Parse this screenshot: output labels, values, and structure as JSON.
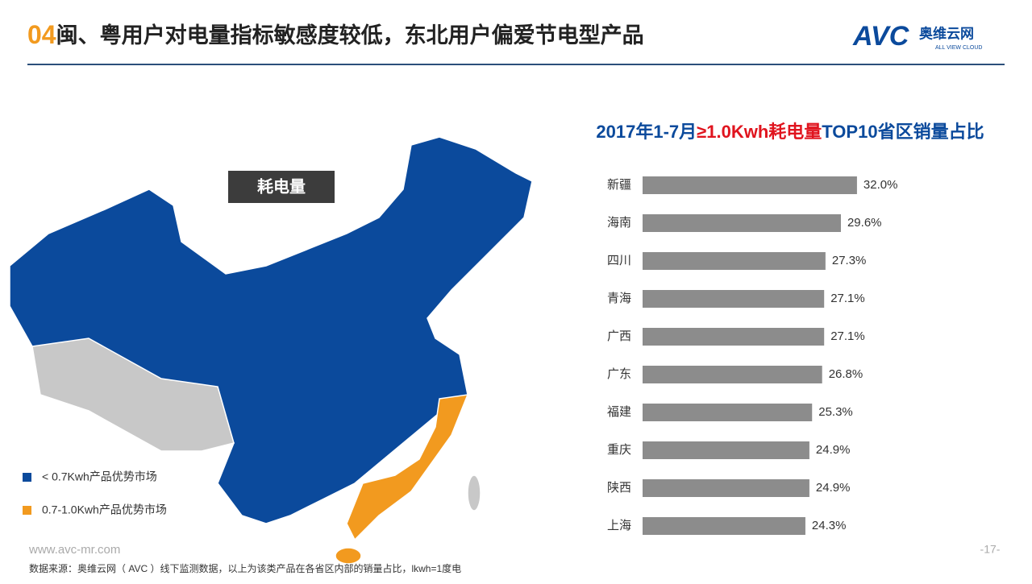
{
  "header": {
    "number": "04",
    "title": "闽、粤用户对电量指标敏感度较低，东北用户偏爱节电型产品",
    "logo": "AVC",
    "logo_cn": "奥维云网",
    "logo_en": "ALL VIEW CLOUD"
  },
  "map": {
    "label": "耗电量",
    "legend": [
      "< 0.7Kwh产品优势市场",
      "0.7-1.0Kwh产品优势市场"
    ],
    "colors": [
      "#0b4a9c",
      "#f29a1f"
    ]
  },
  "chart_data": {
    "type": "bar",
    "orientation": "horizontal",
    "title": [
      "2017年1-7月",
      "≥1.0Kwh耗电量",
      "TOP10省区销量占比"
    ],
    "categories": [
      "新疆",
      "海南",
      "四川",
      "青海",
      "广西",
      "广东",
      "福建",
      "重庆",
      "陕西",
      "上海"
    ],
    "values": [
      32.0,
      29.6,
      27.3,
      27.1,
      27.1,
      26.8,
      25.3,
      24.9,
      24.9,
      24.3
    ],
    "value_labels": [
      "32.0%",
      "29.6%",
      "27.3%",
      "27.1%",
      "27.1%",
      "26.8%",
      "25.3%",
      "24.9%",
      "24.9%",
      "24.3%"
    ],
    "color": "#8c8c8c"
  },
  "footer": {
    "url": "www.avc-mr.com",
    "source": "数据来源：奥维云网（ AVC ）线下监测数据，以上为该类产品在各省区内部的销量占比，lkwh=1度电",
    "page": "-17-"
  }
}
